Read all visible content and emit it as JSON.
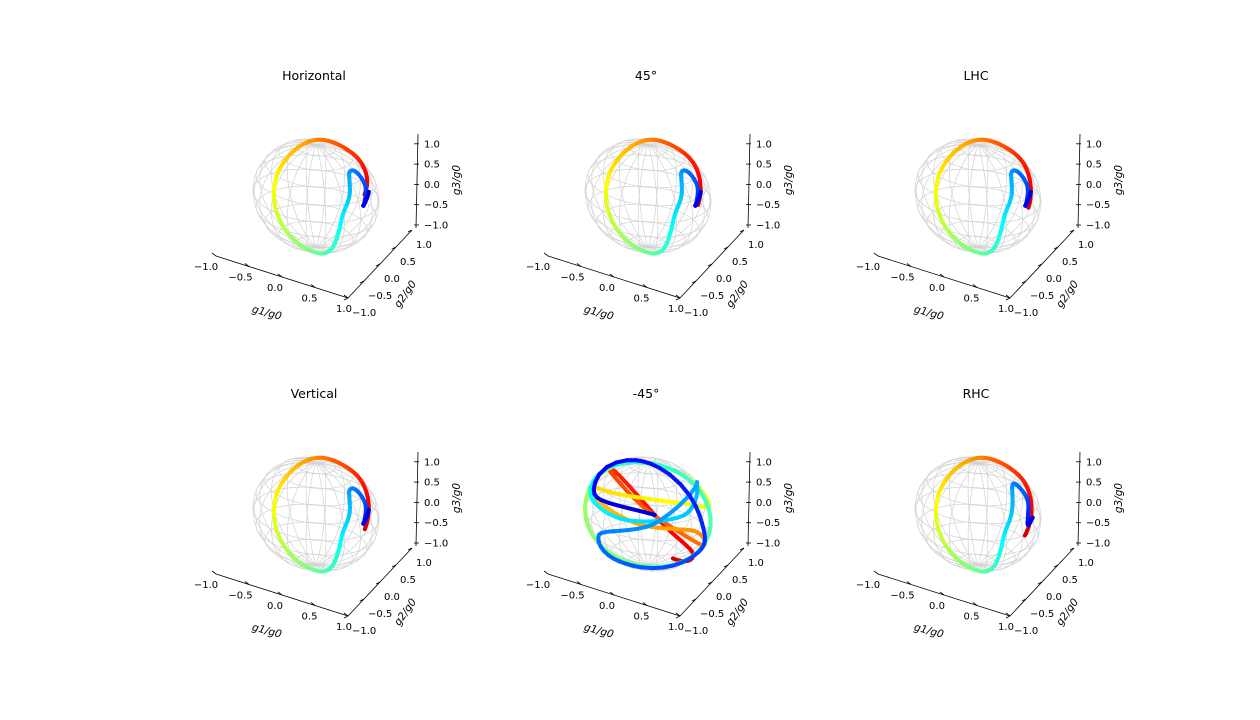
{
  "chart_data": [
    {
      "type": "scatter",
      "projection": "3d-poincare-sphere",
      "title": "Horizontal",
      "xlabel": "g1/g0",
      "ylabel": "g2/g0",
      "zlabel": "g3/g0",
      "xlim": [
        -1,
        1
      ],
      "ylim": [
        -1,
        1
      ],
      "zlim": [
        -1,
        1
      ],
      "xticks": [
        "−1.0",
        "−0.5",
        "0.0",
        "0.5",
        "1.0"
      ],
      "yticks": [
        "−1.0",
        "−0.5",
        "0.0",
        "0.5",
        "1.0"
      ],
      "zticks": [
        "−1.0",
        "−0.5",
        "0.0",
        "0.5",
        "1.0"
      ],
      "grid": true,
      "colormap": "jet",
      "trajectory": [
        [
          0.92,
          0.18,
          0.38
        ],
        [
          0.72,
          0.42,
          0.55
        ],
        [
          0.35,
          0.55,
          0.72
        ],
        [
          0.05,
          0.48,
          0.82
        ],
        [
          -0.3,
          0.45,
          0.82
        ],
        [
          -0.62,
          0.42,
          0.65
        ],
        [
          -0.88,
          0.3,
          0.32
        ],
        [
          -0.98,
          0.12,
          -0.05
        ],
        [
          -0.86,
          -0.05,
          -0.45
        ],
        [
          -0.58,
          -0.15,
          -0.75
        ],
        [
          -0.2,
          -0.2,
          -0.95
        ],
        [
          0.22,
          -0.22,
          -0.93
        ],
        [
          0.58,
          -0.3,
          -0.65
        ],
        [
          0.78,
          -0.35,
          -0.25
        ],
        [
          0.82,
          -0.3,
          0.1
        ],
        [
          0.62,
          -0.1,
          0.3
        ],
        [
          0.48,
          0.05,
          0.52
        ],
        [
          0.6,
          0.2,
          0.62
        ],
        [
          0.75,
          0.25,
          0.45
        ],
        [
          0.72,
          0.1,
          0.2
        ],
        [
          0.55,
          0.05,
          0.12
        ],
        [
          0.28,
          0.1,
          0.12
        ]
      ]
    },
    {
      "type": "scatter",
      "projection": "3d-poincare-sphere",
      "title": "45°",
      "xlabel": "g1/g0",
      "ylabel": "g2/g0",
      "zlabel": "g3/g0",
      "xlim": [
        -1,
        1
      ],
      "ylim": [
        -1,
        1
      ],
      "zlim": [
        -1,
        1
      ],
      "xticks": [
        "−1.0",
        "−0.5",
        "0.0",
        "0.5",
        "1.0"
      ],
      "yticks": [
        "−1.0",
        "−0.5",
        "0.0",
        "0.5",
        "1.0"
      ],
      "zticks": [
        "−1.0",
        "−0.5",
        "0.0",
        "0.5",
        "1.0"
      ],
      "grid": true,
      "colormap": "jet",
      "trajectory": [
        [
          0.95,
          0.15,
          0.2
        ],
        [
          0.75,
          0.4,
          0.5
        ],
        [
          0.35,
          0.55,
          0.72
        ],
        [
          0.05,
          0.48,
          0.82
        ],
        [
          -0.3,
          0.45,
          0.82
        ],
        [
          -0.62,
          0.42,
          0.65
        ],
        [
          -0.88,
          0.3,
          0.32
        ],
        [
          -0.98,
          0.12,
          -0.05
        ],
        [
          -0.86,
          -0.05,
          -0.45
        ],
        [
          -0.58,
          -0.15,
          -0.75
        ],
        [
          -0.2,
          -0.2,
          -0.95
        ],
        [
          0.22,
          -0.22,
          -0.93
        ],
        [
          0.58,
          -0.3,
          -0.65
        ],
        [
          0.78,
          -0.35,
          -0.25
        ],
        [
          0.82,
          -0.3,
          0.1
        ],
        [
          0.62,
          -0.1,
          0.3
        ],
        [
          0.48,
          0.05,
          0.52
        ],
        [
          0.6,
          0.2,
          0.62
        ],
        [
          0.75,
          0.25,
          0.45
        ],
        [
          0.72,
          0.1,
          0.2
        ],
        [
          0.55,
          0.05,
          0.12
        ],
        [
          0.28,
          0.1,
          0.12
        ]
      ]
    },
    {
      "type": "scatter",
      "projection": "3d-poincare-sphere",
      "title": "LHC",
      "xlabel": "g1/g0",
      "ylabel": "g2/g0",
      "zlabel": "g3/g0",
      "xlim": [
        -1,
        1
      ],
      "ylim": [
        -1,
        1
      ],
      "zlim": [
        -1,
        1
      ],
      "xticks": [
        "−1.0",
        "−0.5",
        "0.0",
        "0.5",
        "1.0"
      ],
      "yticks": [
        "−1.0",
        "−0.5",
        "0.0",
        "0.5",
        "1.0"
      ],
      "zticks": [
        "−1.0",
        "−0.5",
        "0.0",
        "0.5",
        "1.0"
      ],
      "grid": true,
      "colormap": "jet",
      "trajectory": [
        [
          0.95,
          0.15,
          0.15
        ],
        [
          0.75,
          0.4,
          0.5
        ],
        [
          0.35,
          0.55,
          0.72
        ],
        [
          0.05,
          0.48,
          0.82
        ],
        [
          -0.3,
          0.45,
          0.82
        ],
        [
          -0.62,
          0.42,
          0.65
        ],
        [
          -0.88,
          0.3,
          0.32
        ],
        [
          -0.98,
          0.12,
          -0.05
        ],
        [
          -0.86,
          -0.05,
          -0.45
        ],
        [
          -0.58,
          -0.15,
          -0.75
        ],
        [
          -0.2,
          -0.2,
          -0.95
        ],
        [
          0.22,
          -0.22,
          -0.93
        ],
        [
          0.58,
          -0.3,
          -0.65
        ],
        [
          0.78,
          -0.35,
          -0.25
        ],
        [
          0.82,
          -0.3,
          0.1
        ],
        [
          0.62,
          -0.1,
          0.3
        ],
        [
          0.48,
          0.05,
          0.52
        ],
        [
          0.6,
          0.2,
          0.62
        ],
        [
          0.75,
          0.25,
          0.45
        ],
        [
          0.72,
          0.1,
          0.2
        ],
        [
          0.55,
          0.05,
          0.12
        ],
        [
          0.28,
          0.1,
          0.12
        ]
      ]
    },
    {
      "type": "scatter",
      "projection": "3d-poincare-sphere",
      "title": "Vertical",
      "xlabel": "g1/g0",
      "ylabel": "g2/g0",
      "zlabel": "g3/g0",
      "xlim": [
        -1,
        1
      ],
      "ylim": [
        -1,
        1
      ],
      "zlim": [
        -1,
        1
      ],
      "xticks": [
        "−1.0",
        "−0.5",
        "0.0",
        "0.5",
        "1.0"
      ],
      "yticks": [
        "−1.0",
        "−0.5",
        "0.0",
        "0.5",
        "1.0"
      ],
      "zticks": [
        "−1.0",
        "−0.5",
        "0.0",
        "0.5",
        "1.0"
      ],
      "grid": true,
      "colormap": "jet",
      "trajectory": [
        [
          0.95,
          0.1,
          0.1
        ],
        [
          0.75,
          0.4,
          0.5
        ],
        [
          0.35,
          0.55,
          0.72
        ],
        [
          0.05,
          0.48,
          0.82
        ],
        [
          -0.3,
          0.45,
          0.82
        ],
        [
          -0.62,
          0.42,
          0.65
        ],
        [
          -0.88,
          0.3,
          0.32
        ],
        [
          -0.98,
          0.12,
          -0.05
        ],
        [
          -0.86,
          -0.05,
          -0.45
        ],
        [
          -0.58,
          -0.15,
          -0.75
        ],
        [
          -0.2,
          -0.2,
          -0.95
        ],
        [
          0.22,
          -0.22,
          -0.93
        ],
        [
          0.58,
          -0.3,
          -0.65
        ],
        [
          0.78,
          -0.35,
          -0.25
        ],
        [
          0.82,
          -0.3,
          0.1
        ],
        [
          0.62,
          -0.1,
          0.3
        ],
        [
          0.48,
          0.05,
          0.52
        ],
        [
          0.6,
          0.2,
          0.62
        ],
        [
          0.75,
          0.25,
          0.45
        ],
        [
          0.72,
          0.1,
          0.2
        ],
        [
          0.55,
          0.05,
          0.12
        ],
        [
          0.28,
          0.1,
          0.12
        ]
      ]
    },
    {
      "type": "scatter",
      "projection": "3d-poincare-sphere",
      "title": "-45°",
      "xlabel": "g1/g0",
      "ylabel": "g2/g0",
      "zlabel": "g3/g0",
      "xlim": [
        -1,
        1
      ],
      "ylim": [
        -1,
        1
      ],
      "zlim": [
        -1,
        1
      ],
      "xticks": [
        "−1.0",
        "−0.5",
        "0.0",
        "0.5",
        "1.0"
      ],
      "yticks": [
        "−1.0",
        "−0.5",
        "0.0",
        "0.5",
        "1.0"
      ],
      "zticks": [
        "−1.0",
        "−0.5",
        "0.0",
        "0.5",
        "1.0"
      ],
      "grid": true,
      "colormap": "jet",
      "trajectory": [
        [
          0.85,
          -0.3,
          -0.4
        ],
        [
          0.5,
          0.5,
          -0.7
        ],
        [
          -0.4,
          0.7,
          -0.55
        ],
        [
          -0.9,
          0.2,
          0.35
        ],
        [
          -0.3,
          -0.5,
          0.8
        ],
        [
          0.6,
          -0.6,
          0.5
        ],
        [
          0.9,
          0.3,
          -0.3
        ],
        [
          0.2,
          0.85,
          -0.5
        ],
        [
          -0.7,
          0.4,
          -0.6
        ],
        [
          -0.8,
          -0.5,
          0.3
        ],
        [
          0.1,
          -0.75,
          0.65
        ],
        [
          0.75,
          -0.2,
          0.62
        ],
        [
          0.65,
          0.7,
          0.25
        ],
        [
          -0.3,
          0.8,
          0.5
        ],
        [
          -0.85,
          -0.1,
          0.5
        ],
        [
          -0.4,
          -0.85,
          -0.3
        ],
        [
          0.5,
          -0.6,
          -0.62
        ],
        [
          0.8,
          0.5,
          -0.3
        ],
        [
          0.0,
          0.9,
          0.4
        ],
        [
          -0.75,
          0.3,
          0.6
        ],
        [
          -0.6,
          -0.7,
          0.4
        ],
        [
          0.3,
          -0.9,
          0.3
        ],
        [
          0.9,
          -0.1,
          0.4
        ],
        [
          0.4,
          0.7,
          0.6
        ],
        [
          -0.5,
          0.6,
          -0.6
        ],
        [
          -0.7,
          -0.4,
          -0.6
        ],
        [
          0.2,
          -0.7,
          -0.68
        ],
        [
          0.85,
          0.2,
          -0.5
        ],
        [
          0.3,
          0.9,
          -0.3
        ],
        [
          -0.6,
          0.5,
          0.62
        ],
        [
          -0.4,
          -0.8,
          0.45
        ],
        [
          0.7,
          -0.55,
          0.45
        ]
      ]
    },
    {
      "type": "scatter",
      "projection": "3d-poincare-sphere",
      "title": "RHC",
      "xlabel": "g1/g0",
      "ylabel": "g2/g0",
      "zlabel": "g3/g0",
      "xlim": [
        -1,
        1
      ],
      "ylim": [
        -1,
        1
      ],
      "zlim": [
        -1,
        1
      ],
      "xticks": [
        "−1.0",
        "−0.5",
        "0.0",
        "0.5",
        "1.0"
      ],
      "yticks": [
        "−1.0",
        "−0.5",
        "0.0",
        "0.5",
        "1.0"
      ],
      "zticks": [
        "−1.0",
        "−0.5",
        "0.0",
        "0.5",
        "1.0"
      ],
      "grid": true,
      "colormap": "jet",
      "trajectory": [
        [
          0.95,
          0.05,
          0.0
        ],
        [
          0.78,
          0.35,
          0.4
        ],
        [
          0.4,
          0.55,
          0.7
        ],
        [
          0.05,
          0.48,
          0.82
        ],
        [
          -0.3,
          0.45,
          0.82
        ],
        [
          -0.62,
          0.42,
          0.65
        ],
        [
          -0.88,
          0.3,
          0.32
        ],
        [
          -0.98,
          0.12,
          -0.05
        ],
        [
          -0.86,
          -0.05,
          -0.45
        ],
        [
          -0.58,
          -0.15,
          -0.75
        ],
        [
          -0.2,
          -0.2,
          -0.95
        ],
        [
          0.22,
          -0.22,
          -0.93
        ],
        [
          0.58,
          -0.3,
          -0.65
        ],
        [
          0.78,
          -0.35,
          -0.25
        ],
        [
          0.82,
          -0.3,
          0.1
        ],
        [
          0.62,
          -0.1,
          0.3
        ],
        [
          0.45,
          0.1,
          0.55
        ],
        [
          0.55,
          0.25,
          0.7
        ],
        [
          0.7,
          0.3,
          0.5
        ],
        [
          0.68,
          0.15,
          0.25
        ],
        [
          0.55,
          0.08,
          0.1
        ],
        [
          0.3,
          0.1,
          0.08
        ]
      ]
    }
  ]
}
